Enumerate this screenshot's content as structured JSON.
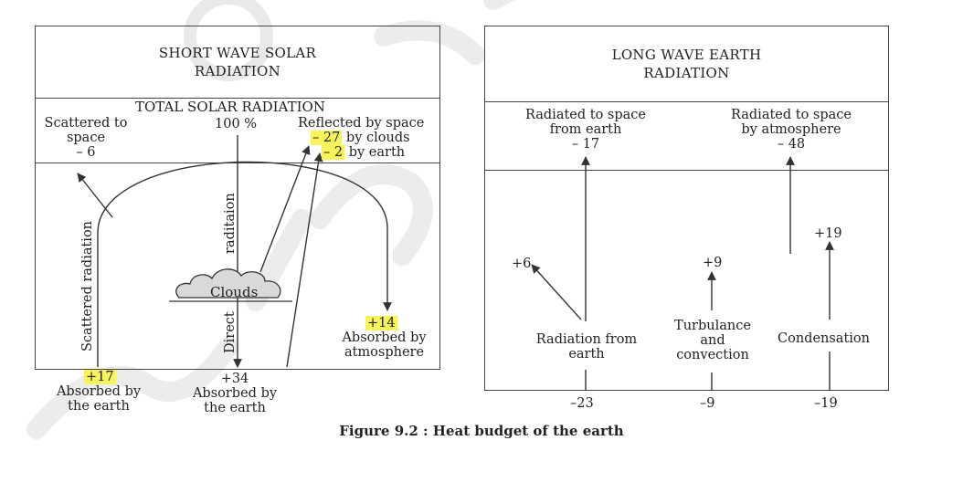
{
  "left_panel": {
    "header": [
      "SHORT WAVE SOLAR",
      "RADIATION"
    ],
    "total_solar_radiation": "TOTAL SOLAR RADIATION",
    "total_percent": "100 %",
    "scattered_to_space": [
      "Scattered to",
      "space",
      "– 6"
    ],
    "reflected_by_space": "Reflected by space",
    "reflected_clouds_value": "– 27",
    "reflected_clouds_text": " by clouds",
    "reflected_earth_value": "– 2",
    "reflected_earth_text": " by earth",
    "scattered_radiation_label": "Scattered radiation",
    "direct_radiation_direct": "Direct",
    "direct_radiation_radiation": "raditaion",
    "clouds_label": "Clouds",
    "absorbed_atmosphere_value": "+14",
    "absorbed_atmosphere_text": [
      "Absorbed by",
      "atmosphere"
    ],
    "absorbed_earth_scattered_value": "+17",
    "absorbed_earth_scattered_text": [
      "Absorbed by",
      "the earth"
    ],
    "absorbed_earth_direct_value": "+34",
    "absorbed_earth_direct_text": [
      "Absorbed by",
      "the earth"
    ]
  },
  "right_panel": {
    "header": [
      "LONG WAVE EARTH",
      "RADIATION"
    ],
    "radiated_from_earth": [
      "Radiated to space",
      "from earth",
      "– 17"
    ],
    "radiated_by_atmosphere": [
      "Radiated to space",
      "by atmosphere",
      "– 48"
    ],
    "plus6": "+6",
    "plus9": "+9",
    "plus19": "+19",
    "radiation_from_earth": [
      "Radiation from",
      "earth"
    ],
    "turbulance": [
      "Turbulance",
      "and",
      "convection"
    ],
    "condensation": "Condensation",
    "bottom_values": [
      "–23",
      "–9",
      "–19"
    ]
  },
  "caption": "Figure 9.2 : Heat budget of the earth",
  "colors": {
    "highlight": "#f7f35a",
    "line": "#444444"
  }
}
